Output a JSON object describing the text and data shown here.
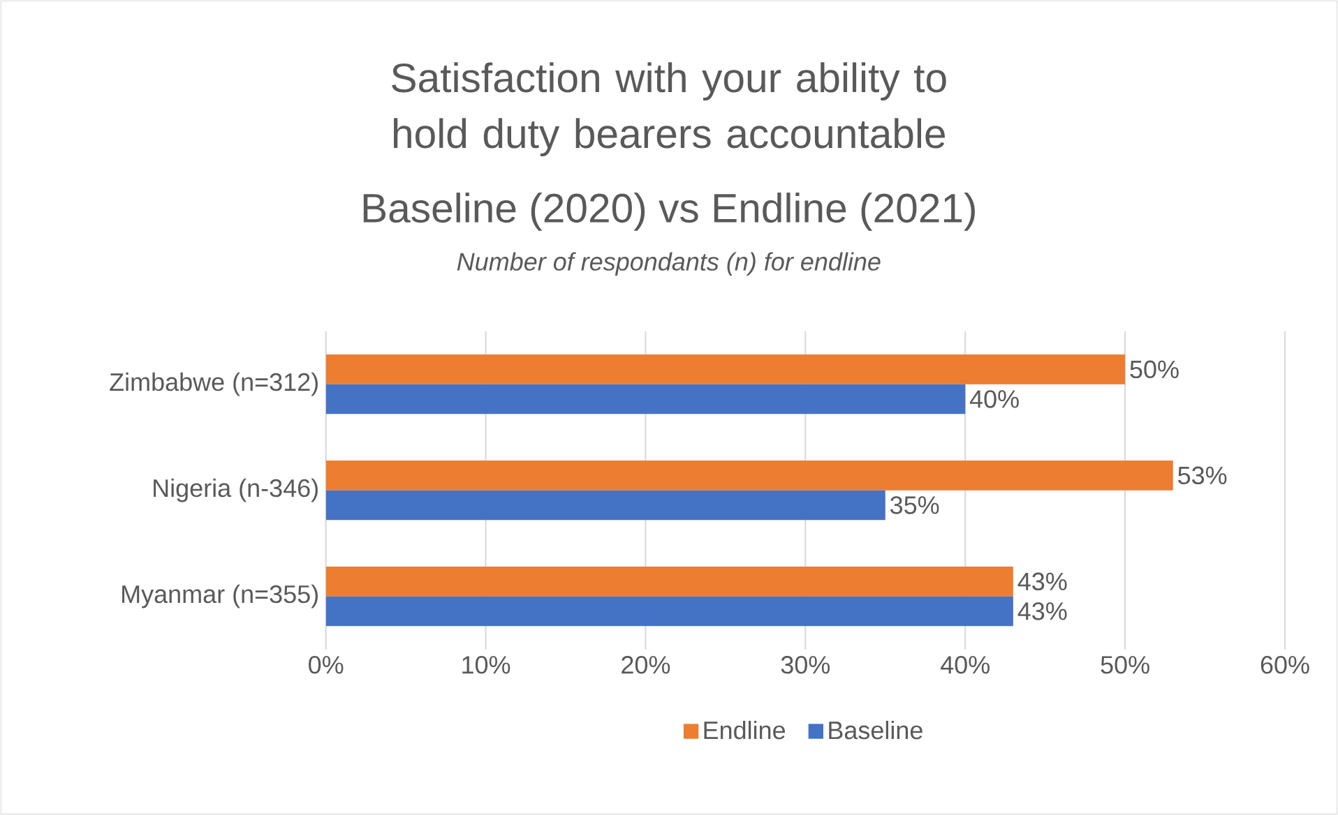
{
  "chart_data": {
    "type": "bar",
    "orientation": "horizontal",
    "title": "Satisfaction with your ability to hold duty bearers accountable",
    "subtitle": "Baseline  (2020) vs Endline (2021)",
    "annotations": [
      "*Number of respondants (n) for endline*"
    ],
    "categories": [
      "Zimbabwe (n=312)",
      "Nigeria (n-346)",
      "Myanmar (n=355)"
    ],
    "series": [
      {
        "name": "Endline",
        "color": "#ed7d31",
        "values": [
          50,
          53,
          43
        ],
        "value_labels": [
          "50%",
          "53%",
          "43%"
        ]
      },
      {
        "name": "Baseline",
        "color": "#4472c4",
        "values": [
          40,
          35,
          43
        ],
        "value_labels": [
          "40%",
          "35%",
          "43%"
        ]
      }
    ],
    "xlim": [
      0,
      60
    ],
    "xticks": [
      {
        "value": 0,
        "label": "0%"
      },
      {
        "value": 10,
        "label": "10%"
      },
      {
        "value": 20,
        "label": "20%"
      },
      {
        "value": 30,
        "label": "30%"
      },
      {
        "value": 40,
        "label": "40%"
      },
      {
        "value": 50,
        "label": "50%"
      },
      {
        "value": 60,
        "label": "60%"
      }
    ],
    "grid": "x",
    "legend": "bottom"
  }
}
